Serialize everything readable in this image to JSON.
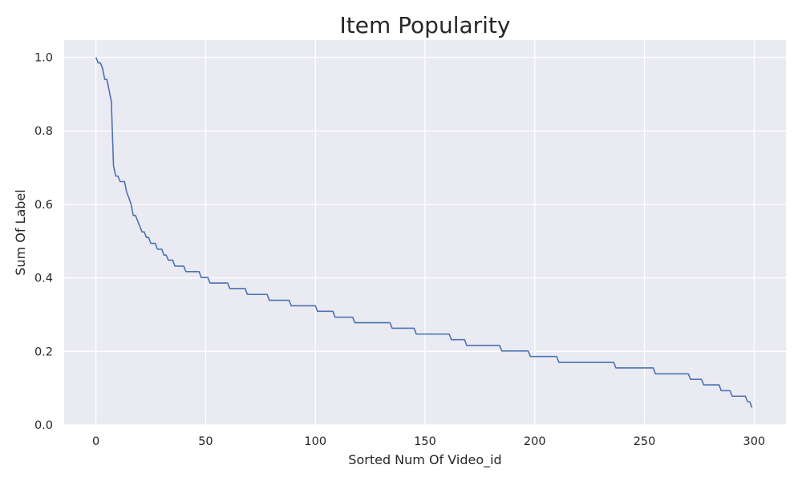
{
  "chart_data": {
    "type": "line",
    "title": "Item Popularity",
    "xlabel": "Sorted Num Of Video_id",
    "ylabel": "Sum Of Label",
    "xlim": [
      -14.5,
      314.5
    ],
    "ylim": [
      0.0,
      1.047
    ],
    "xticks": [
      0,
      50,
      100,
      150,
      200,
      250,
      300
    ],
    "xtick_labels": [
      "0",
      "50",
      "100",
      "150",
      "200",
      "250",
      "300"
    ],
    "yticks": [
      0.0,
      0.2,
      0.4,
      0.6,
      0.8,
      1.0
    ],
    "ytick_labels": [
      "0.0",
      "0.2",
      "0.4",
      "0.6",
      "0.8",
      "1.0"
    ],
    "grid": true,
    "background": "#eaeaf2",
    "series": [
      {
        "color": "#4c72b0",
        "points": [
          [
            0,
            1.0
          ],
          [
            1,
            0.985
          ],
          [
            2,
            0.985
          ],
          [
            3,
            0.97
          ],
          [
            4,
            0.94
          ],
          [
            5,
            0.94
          ],
          [
            6,
            0.91
          ],
          [
            7,
            0.88
          ],
          [
            8,
            0.705
          ],
          [
            9,
            0.677
          ],
          [
            10,
            0.677
          ],
          [
            11,
            0.662
          ],
          [
            12,
            0.662
          ],
          [
            13,
            0.662
          ],
          [
            14,
            0.633
          ],
          [
            15,
            0.618
          ],
          [
            16,
            0.6
          ],
          [
            17,
            0.57
          ],
          [
            18,
            0.57
          ],
          [
            19,
            0.555
          ],
          [
            20,
            0.54
          ],
          [
            21,
            0.525
          ],
          [
            22,
            0.525
          ],
          [
            23,
            0.51
          ],
          [
            24,
            0.51
          ],
          [
            25,
            0.494
          ],
          [
            26,
            0.494
          ],
          [
            27,
            0.494
          ],
          [
            28,
            0.478
          ],
          [
            29,
            0.478
          ],
          [
            30,
            0.478
          ],
          [
            31,
            0.462
          ],
          [
            32,
            0.462
          ],
          [
            33,
            0.448
          ],
          [
            34,
            0.448
          ],
          [
            35,
            0.448
          ],
          [
            36,
            0.432
          ],
          [
            40,
            0.432
          ],
          [
            41,
            0.417
          ],
          [
            47,
            0.417
          ],
          [
            48,
            0.401
          ],
          [
            51,
            0.401
          ],
          [
            52,
            0.386
          ],
          [
            60,
            0.386
          ],
          [
            61,
            0.371
          ],
          [
            68,
            0.371
          ],
          [
            69,
            0.355
          ],
          [
            78,
            0.355
          ],
          [
            79,
            0.339
          ],
          [
            88,
            0.339
          ],
          [
            89,
            0.324
          ],
          [
            100,
            0.324
          ],
          [
            101,
            0.309
          ],
          [
            108,
            0.309
          ],
          [
            109,
            0.293
          ],
          [
            117,
            0.293
          ],
          [
            118,
            0.278
          ],
          [
            134,
            0.278
          ],
          [
            135,
            0.263
          ],
          [
            145,
            0.263
          ],
          [
            146,
            0.247
          ],
          [
            161,
            0.247
          ],
          [
            162,
            0.232
          ],
          [
            168,
            0.232
          ],
          [
            169,
            0.216
          ],
          [
            184,
            0.216
          ],
          [
            185,
            0.201
          ],
          [
            197,
            0.201
          ],
          [
            198,
            0.186
          ],
          [
            210,
            0.186
          ],
          [
            211,
            0.17
          ],
          [
            236,
            0.17
          ],
          [
            237,
            0.155
          ],
          [
            254,
            0.155
          ],
          [
            255,
            0.139
          ],
          [
            270,
            0.139
          ],
          [
            271,
            0.124
          ],
          [
            276,
            0.124
          ],
          [
            277,
            0.109
          ],
          [
            284,
            0.109
          ],
          [
            285,
            0.093
          ],
          [
            289,
            0.093
          ],
          [
            290,
            0.078
          ],
          [
            296,
            0.078
          ],
          [
            297,
            0.063
          ],
          [
            298,
            0.063
          ],
          [
            299,
            0.047
          ]
        ]
      }
    ]
  }
}
